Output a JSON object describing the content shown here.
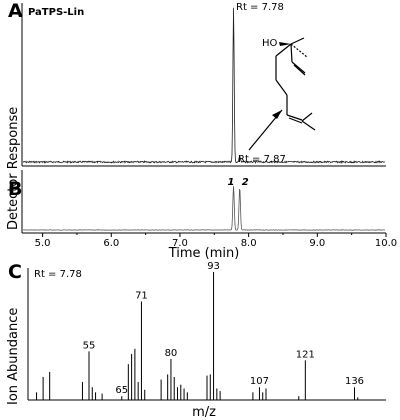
{
  "chart_data": [
    {
      "panel": "A",
      "type": "line",
      "title": "PaTPS-Lin",
      "ylabel": "Detector Response",
      "xlim": [
        4.7,
        10.0
      ],
      "grid": false,
      "peaks": [
        {
          "x": 7.78,
          "y": 1.0,
          "label": "Rt = 7.78"
        },
        {
          "x": 7.87,
          "y": 0.04,
          "label": "Rt = 7.87"
        }
      ],
      "structure": {
        "hydroxyl_label": "HO"
      }
    },
    {
      "panel": "B",
      "type": "line",
      "xlabel": "Time (min)",
      "xlim": [
        4.7,
        10.0
      ],
      "ticks": [
        "5.0",
        "6.0",
        "7.0",
        "8.0",
        "9.0",
        "10.0"
      ],
      "peaks": [
        {
          "x": 7.78,
          "y": 0.8,
          "label": "1"
        },
        {
          "x": 7.87,
          "y": 0.78,
          "label": "2"
        }
      ]
    },
    {
      "panel": "C",
      "type": "bar",
      "title": "Rt = 7.78",
      "xlabel": "m/z",
      "ylabel": "Ion Abundance",
      "xlim": [
        37,
        145
      ],
      "ylim": [
        0,
        100
      ],
      "labeled_peaks": [
        {
          "mz": 55,
          "value": 38,
          "label": "55"
        },
        {
          "mz": 65,
          "value": 3,
          "label": "65"
        },
        {
          "mz": 71,
          "value": 77,
          "label": "71"
        },
        {
          "mz": 80,
          "value": 32,
          "label": "80"
        },
        {
          "mz": 93,
          "value": 100,
          "label": "93"
        },
        {
          "mz": 107,
          "value": 10,
          "label": "107"
        },
        {
          "mz": 121,
          "value": 31,
          "label": "121"
        },
        {
          "mz": 136,
          "value": 10,
          "label": "136"
        }
      ],
      "minor_peaks": [
        {
          "mz": 39,
          "value": 6
        },
        {
          "mz": 41,
          "value": 18
        },
        {
          "mz": 43,
          "value": 22
        },
        {
          "mz": 53,
          "value": 14
        },
        {
          "mz": 56,
          "value": 10
        },
        {
          "mz": 57,
          "value": 6
        },
        {
          "mz": 59,
          "value": 5
        },
        {
          "mz": 67,
          "value": 28
        },
        {
          "mz": 68,
          "value": 36
        },
        {
          "mz": 69,
          "value": 40
        },
        {
          "mz": 70,
          "value": 14
        },
        {
          "mz": 72,
          "value": 8
        },
        {
          "mz": 77,
          "value": 16
        },
        {
          "mz": 79,
          "value": 20
        },
        {
          "mz": 81,
          "value": 18
        },
        {
          "mz": 82,
          "value": 10
        },
        {
          "mz": 83,
          "value": 12
        },
        {
          "mz": 84,
          "value": 9
        },
        {
          "mz": 85,
          "value": 6
        },
        {
          "mz": 91,
          "value": 19
        },
        {
          "mz": 92,
          "value": 20
        },
        {
          "mz": 94,
          "value": 9
        },
        {
          "mz": 95,
          "value": 7
        },
        {
          "mz": 105,
          "value": 6
        },
        {
          "mz": 108,
          "value": 6
        },
        {
          "mz": 109,
          "value": 9
        },
        {
          "mz": 119,
          "value": 3
        },
        {
          "mz": 137,
          "value": 2
        }
      ]
    }
  ]
}
